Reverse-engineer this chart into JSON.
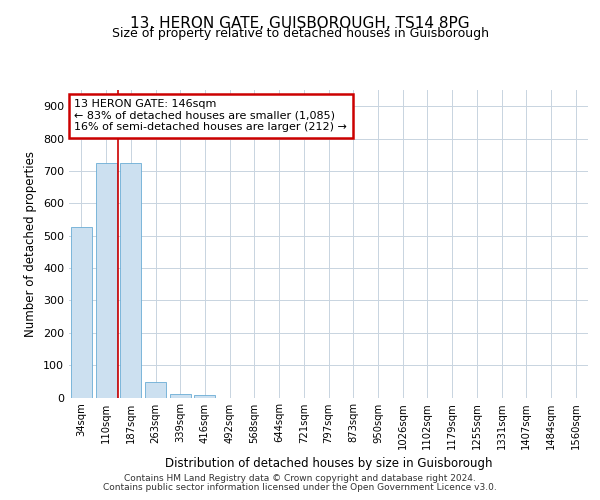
{
  "title": "13, HERON GATE, GUISBOROUGH, TS14 8PG",
  "subtitle": "Size of property relative to detached houses in Guisborough",
  "xlabel": "Distribution of detached houses by size in Guisborough",
  "ylabel": "Number of detached properties",
  "bar_labels": [
    "34sqm",
    "110sqm",
    "187sqm",
    "263sqm",
    "339sqm",
    "416sqm",
    "492sqm",
    "568sqm",
    "644sqm",
    "721sqm",
    "797sqm",
    "873sqm",
    "950sqm",
    "1026sqm",
    "1102sqm",
    "1179sqm",
    "1255sqm",
    "1331sqm",
    "1407sqm",
    "1484sqm",
    "1560sqm"
  ],
  "bar_values": [
    527,
    726,
    726,
    47,
    12,
    7,
    0,
    0,
    0,
    0,
    0,
    0,
    0,
    0,
    0,
    0,
    0,
    0,
    0,
    0,
    0
  ],
  "bar_color": "#cce0f0",
  "bar_edge_color": "#6aadd5",
  "annotation_text": "13 HERON GATE: 146sqm\n← 83% of detached houses are smaller (1,085)\n16% of semi-detached houses are larger (212) →",
  "annotation_box_color": "#ffffff",
  "annotation_box_edge_color": "#cc0000",
  "red_line_x": 1.5,
  "ylim": [
    0,
    950
  ],
  "yticks": [
    0,
    100,
    200,
    300,
    400,
    500,
    600,
    700,
    800,
    900
  ],
  "footer_line1": "Contains HM Land Registry data © Crown copyright and database right 2024.",
  "footer_line2": "Contains public sector information licensed under the Open Government Licence v3.0.",
  "bg_color": "#ffffff",
  "grid_color": "#c8d4e0",
  "title_fontsize": 11,
  "subtitle_fontsize": 9
}
